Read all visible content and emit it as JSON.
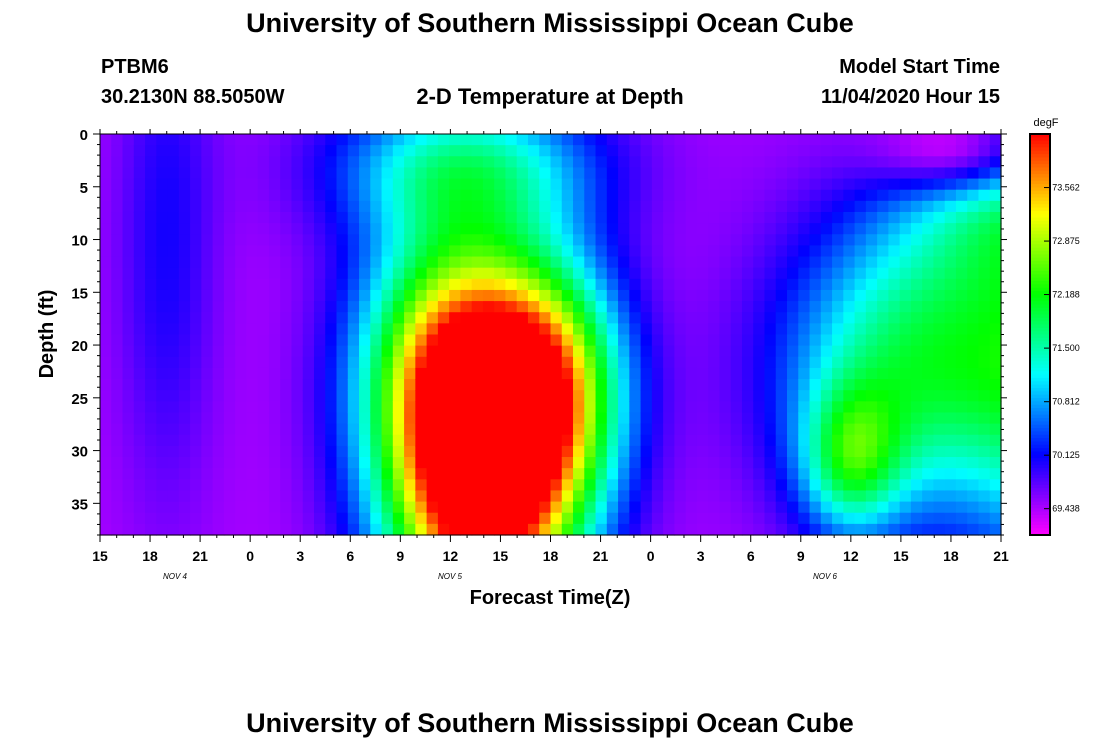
{
  "header": {
    "title": "University of Southern Mississippi Ocean Cube",
    "station": "PTBM6",
    "coords": "30.2130N 88.5050W",
    "subtitle": "2-D Temperature at Depth",
    "model_label": "Model Start Time",
    "model_time": "11/04/2020 Hour 15"
  },
  "footer": {
    "title": "University of Southern Mississippi Ocean Cube"
  },
  "chart_data": {
    "type": "heatmap",
    "title": "2-D Temperature at Depth",
    "xlabel": "Forecast Time(Z)",
    "ylabel": "Depth (ft)",
    "x_ticks": [
      "15",
      "18",
      "21",
      "0",
      "3",
      "6",
      "9",
      "12",
      "15",
      "18",
      "21",
      "0",
      "3",
      "6",
      "9",
      "12",
      "15",
      "18",
      "21"
    ],
    "date_labels": [
      "NOV 4",
      "NOV 5",
      "NOV 6"
    ],
    "y_ticks": [
      0,
      5,
      10,
      15,
      20,
      25,
      30,
      35
    ],
    "ylim": [
      38,
      0
    ],
    "colorbar": {
      "unit": "degF",
      "ticks": [
        "73.562",
        "72.875",
        "72.188",
        "71.500",
        "70.812",
        "70.125",
        "69.438"
      ],
      "range": [
        69.1,
        74.25
      ]
    },
    "value_model": {
      "base_temperature": 69.45,
      "blobs": [
        {
          "time_hours": 23,
          "depth": 34,
          "t_spread": 5.5,
          "d_spread": 16,
          "amplitude": 4.7
        },
        {
          "time_hours": 21,
          "depth": 22,
          "t_spread": 5.5,
          "d_spread": 14,
          "amplitude": 3.2
        },
        {
          "time_hours": 27,
          "depth": 24,
          "t_spread": 4.5,
          "d_spread": 12,
          "amplitude": 3.0
        },
        {
          "time_hours": 22,
          "depth": 3,
          "t_spread": 8,
          "d_spread": 7,
          "amplitude": 1.8
        },
        {
          "time_hours": 45,
          "depth": 31,
          "t_spread": 3,
          "d_spread": 7,
          "amplitude": 1.8
        },
        {
          "time_hours": 49,
          "depth": 22,
          "t_spread": 8,
          "d_spread": 14,
          "amplitude": 2.4
        },
        {
          "time_hours": 59,
          "depth": 24,
          "t_spread": 6,
          "d_spread": 18,
          "amplitude": 2.3
        },
        {
          "time_hours": 52,
          "depth": 2,
          "t_spread": 5,
          "d_spread": 4,
          "amplitude": -1.3
        },
        {
          "time_hours": 55,
          "depth": 6,
          "t_spread": 7,
          "d_spread": 9,
          "amplitude": 1.5
        },
        {
          "time_hours": 70,
          "depth": 36,
          "t_spread": 3.5,
          "d_spread": 14,
          "amplitude": 1.3
        },
        {
          "time_hours": 76,
          "depth": 36,
          "t_spread": 1.5,
          "d_spread": 5,
          "amplitude": 1.8
        },
        {
          "time_hours": 76,
          "depth": 10,
          "t_spread": 1.2,
          "d_spread": 18,
          "amplitude": 0.8
        },
        {
          "time_hours": 4,
          "depth": 10,
          "t_spread": 3,
          "d_spread": 25,
          "amplitude": 0.6
        }
      ]
    }
  }
}
